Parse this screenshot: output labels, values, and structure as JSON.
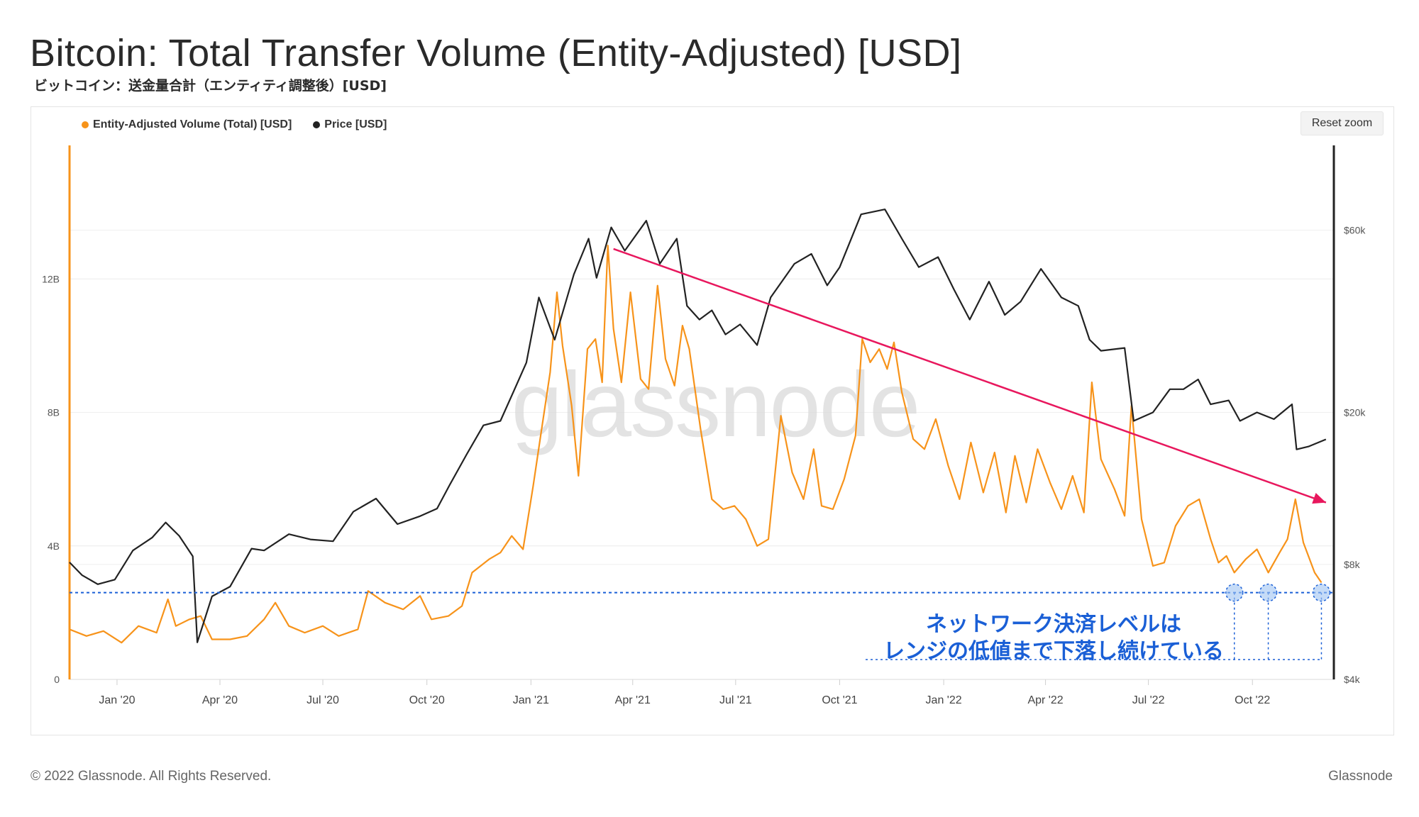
{
  "page": {
    "title": "Bitcoin: Total Transfer Volume (Entity-Adjusted) [USD]",
    "subtitle": "ビットコイン：送金量合計（エンティティ調整後）[USD]",
    "reset_zoom_label": "Reset zoom",
    "watermark": "glassnode",
    "footer_copyright": "© 2022 Glassnode. All Rights Reserved.",
    "footer_brand": "Glassnode"
  },
  "colors": {
    "volume": "#F7931A",
    "price": "#222222",
    "trend_arrow": "#E8175D",
    "support_line": "#1A5FD6",
    "annotation_text": "#1A5FD6"
  },
  "chart_data": {
    "type": "line",
    "legend": [
      {
        "name": "Entity-Adjusted Volume (Total) [USD]",
        "color": "#F7931A"
      },
      {
        "name": "Price [USD]",
        "color": "#222222"
      }
    ],
    "legend_position": "top-left",
    "grid": true,
    "x_axis": {
      "type": "date",
      "range": [
        "2019-11-20",
        "2022-12-12"
      ],
      "ticks": [
        {
          "date": "2020-01-01",
          "label": "Jan '20"
        },
        {
          "date": "2020-04-01",
          "label": "Apr '20"
        },
        {
          "date": "2020-07-01",
          "label": "Jul '20"
        },
        {
          "date": "2020-10-01",
          "label": "Oct '20"
        },
        {
          "date": "2021-01-01",
          "label": "Jan '21"
        },
        {
          "date": "2021-04-01",
          "label": "Apr '21"
        },
        {
          "date": "2021-07-01",
          "label": "Jul '21"
        },
        {
          "date": "2021-10-01",
          "label": "Oct '21"
        },
        {
          "date": "2022-01-01",
          "label": "Jan '22"
        },
        {
          "date": "2022-04-01",
          "label": "Apr '22"
        },
        {
          "date": "2022-07-01",
          "label": "Jul '22"
        },
        {
          "date": "2022-10-01",
          "label": "Oct '22"
        }
      ]
    },
    "y_left": {
      "scale": "linear",
      "range": [
        0,
        16
      ],
      "unit_suffix": "B",
      "ticks": [
        {
          "v": 0,
          "label": "0"
        },
        {
          "v": 4,
          "label": "4B"
        },
        {
          "v": 8,
          "label": "8B"
        },
        {
          "v": 12,
          "label": "12B"
        }
      ]
    },
    "y_right": {
      "scale": "log",
      "range": [
        4000,
        100000
      ],
      "ticks": [
        {
          "v": 4000,
          "label": "$4k"
        },
        {
          "v": 8000,
          "label": "$8k"
        },
        {
          "v": 20000,
          "label": "$20k"
        },
        {
          "v": 60000,
          "label": "$60k"
        }
      ]
    },
    "series": [
      {
        "name": "Entity-Adjusted Volume (Total) [USD]",
        "axis": "left",
        "points": [
          [
            "2019-11-20",
            1.5
          ],
          [
            "2019-12-05",
            1.3
          ],
          [
            "2019-12-20",
            1.45
          ],
          [
            "2020-01-05",
            1.1
          ],
          [
            "2020-01-20",
            1.6
          ],
          [
            "2020-02-05",
            1.4
          ],
          [
            "2020-02-15",
            2.4
          ],
          [
            "2020-02-22",
            1.6
          ],
          [
            "2020-03-05",
            1.8
          ],
          [
            "2020-03-15",
            1.9
          ],
          [
            "2020-03-25",
            1.2
          ],
          [
            "2020-04-10",
            1.2
          ],
          [
            "2020-04-25",
            1.3
          ],
          [
            "2020-05-10",
            1.8
          ],
          [
            "2020-05-20",
            2.3
          ],
          [
            "2020-06-01",
            1.6
          ],
          [
            "2020-06-15",
            1.4
          ],
          [
            "2020-07-01",
            1.6
          ],
          [
            "2020-07-15",
            1.3
          ],
          [
            "2020-08-01",
            1.5
          ],
          [
            "2020-08-10",
            2.65
          ],
          [
            "2020-08-25",
            2.3
          ],
          [
            "2020-09-10",
            2.1
          ],
          [
            "2020-09-25",
            2.5
          ],
          [
            "2020-10-05",
            1.8
          ],
          [
            "2020-10-20",
            1.9
          ],
          [
            "2020-11-01",
            2.2
          ],
          [
            "2020-11-10",
            3.2
          ],
          [
            "2020-11-25",
            3.6
          ],
          [
            "2020-12-05",
            3.8
          ],
          [
            "2020-12-15",
            4.3
          ],
          [
            "2020-12-25",
            3.9
          ],
          [
            "2021-01-03",
            5.8
          ],
          [
            "2021-01-10",
            7.4
          ],
          [
            "2021-01-18",
            9.2
          ],
          [
            "2021-01-24",
            11.6
          ],
          [
            "2021-01-29",
            10.0
          ],
          [
            "2021-02-06",
            8.2
          ],
          [
            "2021-02-12",
            6.1
          ],
          [
            "2021-02-20",
            9.9
          ],
          [
            "2021-02-27",
            10.2
          ],
          [
            "2021-03-05",
            8.9
          ],
          [
            "2021-03-10",
            13.0
          ],
          [
            "2021-03-15",
            10.5
          ],
          [
            "2021-03-22",
            8.9
          ],
          [
            "2021-03-30",
            11.6
          ],
          [
            "2021-04-08",
            9.0
          ],
          [
            "2021-04-15",
            8.7
          ],
          [
            "2021-04-23",
            11.8
          ],
          [
            "2021-04-30",
            9.6
          ],
          [
            "2021-05-08",
            8.8
          ],
          [
            "2021-05-15",
            10.6
          ],
          [
            "2021-05-21",
            9.9
          ],
          [
            "2021-05-31",
            7.5
          ],
          [
            "2021-06-10",
            5.4
          ],
          [
            "2021-06-20",
            5.1
          ],
          [
            "2021-06-30",
            5.2
          ],
          [
            "2021-07-10",
            4.8
          ],
          [
            "2021-07-20",
            4.0
          ],
          [
            "2021-07-30",
            4.2
          ],
          [
            "2021-08-10",
            7.9
          ],
          [
            "2021-08-20",
            6.2
          ],
          [
            "2021-08-30",
            5.4
          ],
          [
            "2021-09-08",
            6.9
          ],
          [
            "2021-09-15",
            5.2
          ],
          [
            "2021-09-25",
            5.1
          ],
          [
            "2021-10-05",
            6.0
          ],
          [
            "2021-10-15",
            7.3
          ],
          [
            "2021-10-21",
            10.2
          ],
          [
            "2021-10-28",
            9.5
          ],
          [
            "2021-11-05",
            9.9
          ],
          [
            "2021-11-12",
            9.3
          ],
          [
            "2021-11-18",
            10.1
          ],
          [
            "2021-11-25",
            8.6
          ],
          [
            "2021-12-05",
            7.2
          ],
          [
            "2021-12-15",
            6.9
          ],
          [
            "2021-12-25",
            7.8
          ],
          [
            "2022-01-05",
            6.4
          ],
          [
            "2022-01-15",
            5.4
          ],
          [
            "2022-01-25",
            7.1
          ],
          [
            "2022-02-05",
            5.6
          ],
          [
            "2022-02-15",
            6.8
          ],
          [
            "2022-02-25",
            5.0
          ],
          [
            "2022-03-05",
            6.7
          ],
          [
            "2022-03-15",
            5.3
          ],
          [
            "2022-03-25",
            6.9
          ],
          [
            "2022-04-05",
            5.9
          ],
          [
            "2022-04-15",
            5.1
          ],
          [
            "2022-04-25",
            6.1
          ],
          [
            "2022-05-05",
            5.0
          ],
          [
            "2022-05-12",
            8.9
          ],
          [
            "2022-05-20",
            6.6
          ],
          [
            "2022-06-01",
            5.7
          ],
          [
            "2022-06-10",
            4.9
          ],
          [
            "2022-06-16",
            8.2
          ],
          [
            "2022-06-25",
            4.8
          ],
          [
            "2022-07-05",
            3.4
          ],
          [
            "2022-07-15",
            3.5
          ],
          [
            "2022-07-25",
            4.6
          ],
          [
            "2022-08-05",
            5.2
          ],
          [
            "2022-08-15",
            5.4
          ],
          [
            "2022-08-25",
            4.2
          ],
          [
            "2022-09-01",
            3.5
          ],
          [
            "2022-09-08",
            3.7
          ],
          [
            "2022-09-15",
            3.2
          ],
          [
            "2022-09-25",
            3.6
          ],
          [
            "2022-10-05",
            3.9
          ],
          [
            "2022-10-15",
            3.2
          ],
          [
            "2022-10-25",
            3.8
          ],
          [
            "2022-11-01",
            4.2
          ],
          [
            "2022-11-08",
            5.4
          ],
          [
            "2022-11-15",
            4.1
          ],
          [
            "2022-11-25",
            3.2
          ],
          [
            "2022-12-01",
            2.9
          ]
        ]
      },
      {
        "name": "Price [USD]",
        "axis": "right",
        "points": [
          [
            "2019-11-20",
            8100
          ],
          [
            "2019-12-01",
            7500
          ],
          [
            "2019-12-15",
            7100
          ],
          [
            "2019-12-30",
            7300
          ],
          [
            "2020-01-15",
            8700
          ],
          [
            "2020-02-01",
            9400
          ],
          [
            "2020-02-13",
            10300
          ],
          [
            "2020-02-25",
            9500
          ],
          [
            "2020-03-08",
            8400
          ],
          [
            "2020-03-12",
            5000
          ],
          [
            "2020-03-25",
            6600
          ],
          [
            "2020-04-10",
            7000
          ],
          [
            "2020-04-29",
            8800
          ],
          [
            "2020-05-10",
            8700
          ],
          [
            "2020-06-01",
            9600
          ],
          [
            "2020-06-20",
            9300
          ],
          [
            "2020-07-10",
            9200
          ],
          [
            "2020-07-28",
            11000
          ],
          [
            "2020-08-17",
            11900
          ],
          [
            "2020-09-05",
            10200
          ],
          [
            "2020-09-25",
            10700
          ],
          [
            "2020-10-10",
            11200
          ],
          [
            "2020-10-21",
            12900
          ],
          [
            "2020-11-05",
            15500
          ],
          [
            "2020-11-20",
            18500
          ],
          [
            "2020-12-05",
            19000
          ],
          [
            "2020-12-17",
            22800
          ],
          [
            "2020-12-28",
            27000
          ],
          [
            "2021-01-08",
            40000
          ],
          [
            "2021-01-22",
            31000
          ],
          [
            "2021-02-08",
            46000
          ],
          [
            "2021-02-21",
            57000
          ],
          [
            "2021-02-28",
            45000
          ],
          [
            "2021-03-13",
            61000
          ],
          [
            "2021-03-25",
            53000
          ],
          [
            "2021-04-13",
            63500
          ],
          [
            "2021-04-25",
            49000
          ],
          [
            "2021-05-10",
            57000
          ],
          [
            "2021-05-19",
            38000
          ],
          [
            "2021-05-30",
            35000
          ],
          [
            "2021-06-10",
            37000
          ],
          [
            "2021-06-22",
            32000
          ],
          [
            "2021-07-05",
            34000
          ],
          [
            "2021-07-20",
            30000
          ],
          [
            "2021-08-01",
            40000
          ],
          [
            "2021-08-22",
            49000
          ],
          [
            "2021-09-06",
            52000
          ],
          [
            "2021-09-20",
            43000
          ],
          [
            "2021-10-01",
            48000
          ],
          [
            "2021-10-20",
            66000
          ],
          [
            "2021-11-10",
            68000
          ],
          [
            "2021-11-25",
            57000
          ],
          [
            "2021-12-10",
            48000
          ],
          [
            "2021-12-27",
            51000
          ],
          [
            "2022-01-10",
            42000
          ],
          [
            "2022-01-24",
            35000
          ],
          [
            "2022-02-10",
            44000
          ],
          [
            "2022-02-24",
            36000
          ],
          [
            "2022-03-10",
            39000
          ],
          [
            "2022-03-28",
            47500
          ],
          [
            "2022-04-15",
            40000
          ],
          [
            "2022-04-30",
            38000
          ],
          [
            "2022-05-10",
            31000
          ],
          [
            "2022-05-20",
            29000
          ],
          [
            "2022-06-10",
            29500
          ],
          [
            "2022-06-18",
            19000
          ],
          [
            "2022-07-05",
            20000
          ],
          [
            "2022-07-20",
            23000
          ],
          [
            "2022-08-01",
            23000
          ],
          [
            "2022-08-14",
            24400
          ],
          [
            "2022-08-25",
            21000
          ],
          [
            "2022-09-10",
            21500
          ],
          [
            "2022-09-20",
            19000
          ],
          [
            "2022-10-05",
            20000
          ],
          [
            "2022-10-20",
            19200
          ],
          [
            "2022-11-05",
            21000
          ],
          [
            "2022-11-09",
            16000
          ],
          [
            "2022-11-20",
            16300
          ],
          [
            "2022-12-05",
            17000
          ]
        ]
      }
    ],
    "annotations": {
      "trend_arrow": {
        "from": [
          "2021-03-15",
          12.9
        ],
        "to": [
          "2022-12-05",
          5.3
        ]
      },
      "support_level_left": 2.6,
      "support_touch_dates": [
        "2022-09-15",
        "2022-10-15",
        "2022-12-01"
      ],
      "note_lines": [
        "ネットワーク決済レベルは",
        "レンジの低値まで下落し続けている"
      ]
    }
  }
}
